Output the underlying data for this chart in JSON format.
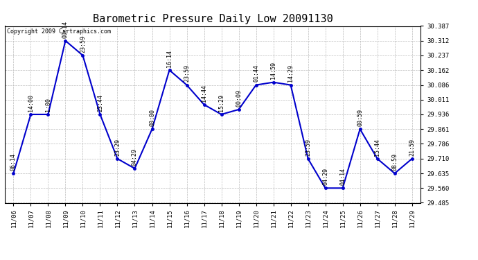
{
  "title": "Barometric Pressure Daily Low 20091130",
  "copyright": "Copyright 2009 Cartraphics.com",
  "dates": [
    "11/06",
    "11/07",
    "11/08",
    "11/09",
    "11/10",
    "11/11",
    "11/12",
    "11/13",
    "11/14",
    "11/15",
    "11/16",
    "11/17",
    "11/18",
    "11/19",
    "11/20",
    "11/21",
    "11/22",
    "11/23",
    "11/24",
    "11/25",
    "11/26",
    "11/27",
    "11/28",
    "11/29"
  ],
  "values": [
    29.635,
    29.936,
    29.936,
    30.312,
    30.237,
    29.936,
    29.71,
    29.66,
    29.861,
    30.162,
    30.086,
    29.986,
    29.936,
    29.961,
    30.086,
    30.1,
    30.086,
    29.71,
    29.56,
    29.56,
    29.861,
    29.71,
    29.635,
    29.71
  ],
  "annotations": [
    "06:14",
    "14:00",
    "1:00",
    "00:14",
    "23:59",
    "23:44",
    "23:29",
    "04:29",
    "00:00",
    "16:14",
    "23:59",
    "14:44",
    "15:29",
    "00:09",
    "01:44",
    "14:59",
    "14:29",
    "23:59",
    "04:29",
    "04:14",
    "00:59",
    "15:44",
    "08:59",
    "21:59"
  ],
  "ylim": [
    29.485,
    30.387
  ],
  "yticks": [
    29.485,
    29.56,
    29.635,
    29.71,
    29.786,
    29.861,
    29.936,
    30.011,
    30.086,
    30.162,
    30.237,
    30.312,
    30.387
  ],
  "line_color": "#0000cc",
  "marker_color": "#0000cc",
  "background_color": "#ffffff",
  "grid_color": "#bbbbbb",
  "title_fontsize": 11,
  "label_fontsize": 6.5,
  "annot_fontsize": 6,
  "copyright_fontsize": 6,
  "figsize": [
    6.9,
    3.75
  ],
  "dpi": 100
}
